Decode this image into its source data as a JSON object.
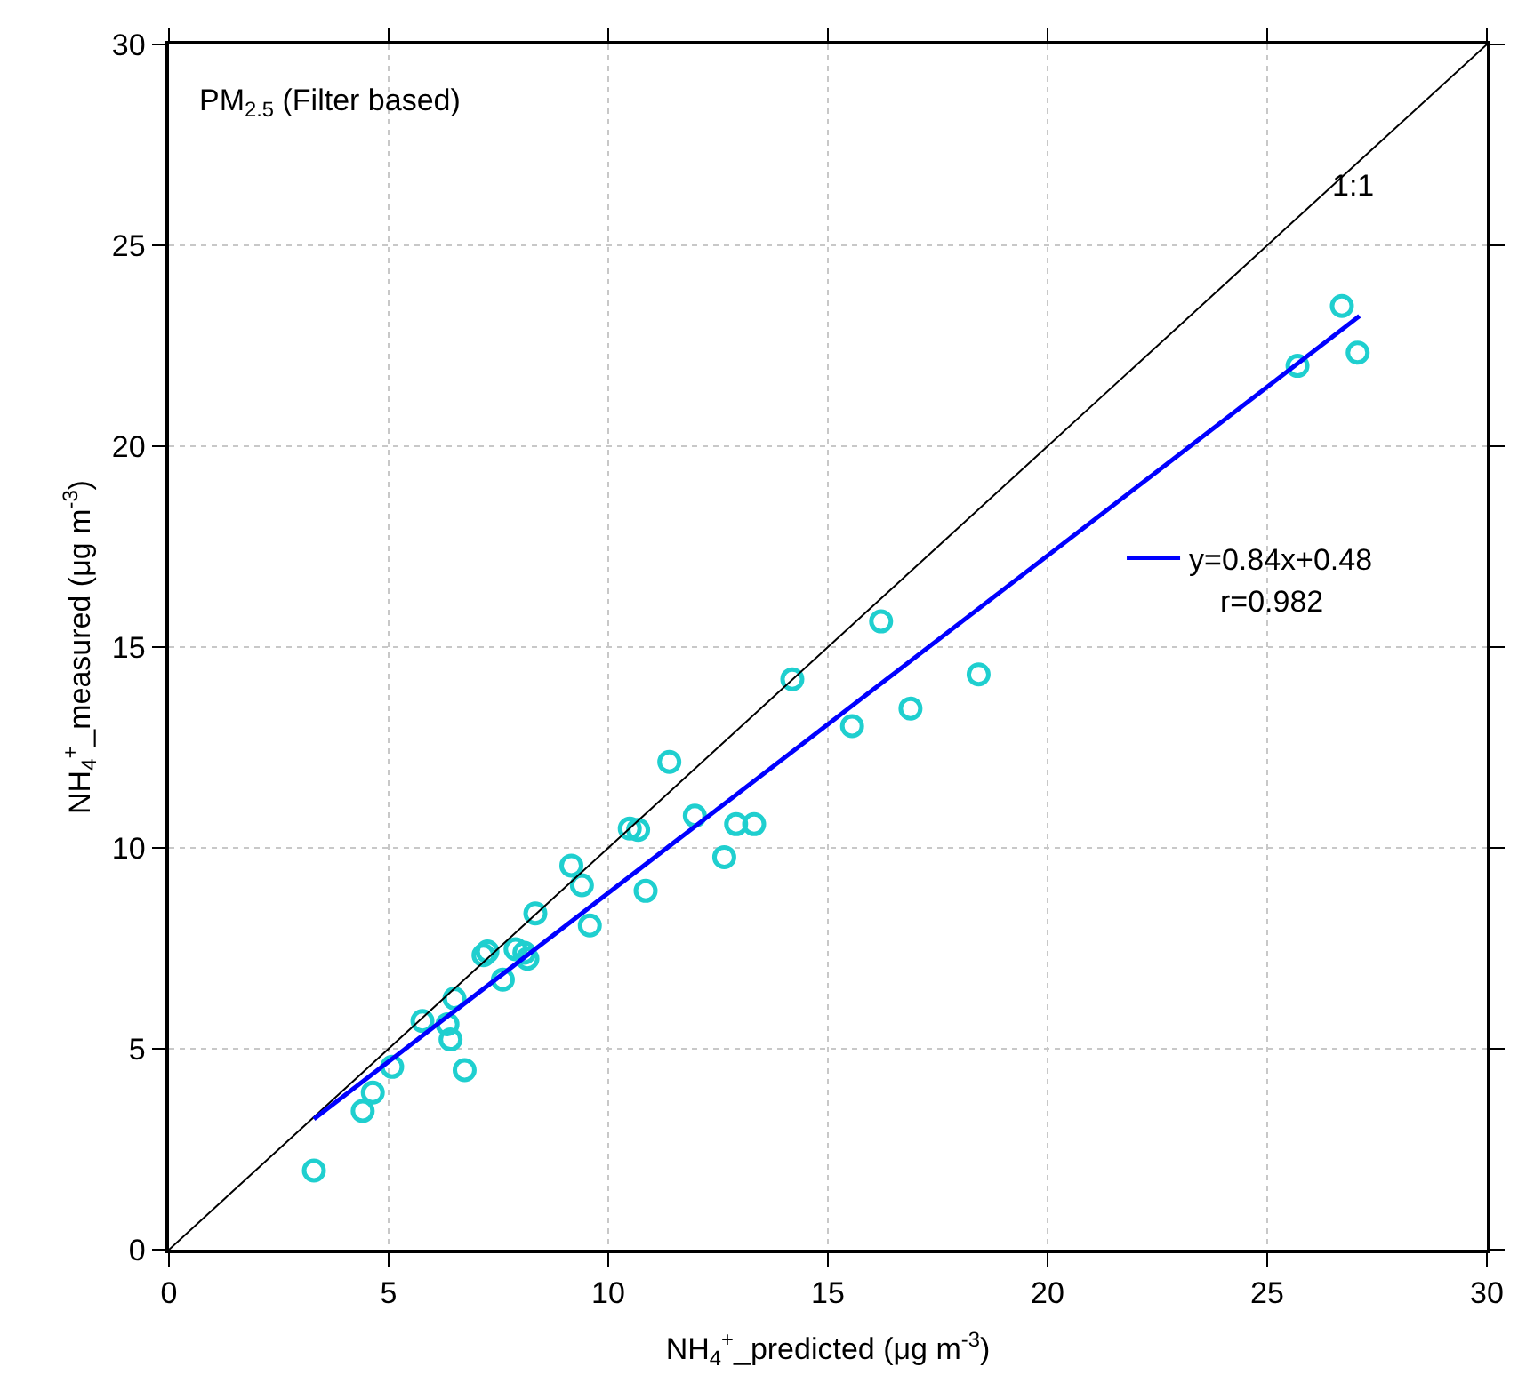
{
  "chart_data": {
    "type": "scatter",
    "xlabel": "NH$_{4}$$^{+}$_predicted (μg m$^{-3}$)",
    "ylabel": "NH$_{4}$$^{+}$_measured (μg m$^{-3}$)",
    "xlim": [
      0,
      30
    ],
    "ylim": [
      0,
      30
    ],
    "xticks": [
      0,
      5,
      10,
      15,
      20,
      25,
      30
    ],
    "yticks": [
      0,
      5,
      10,
      15,
      20,
      25,
      30
    ],
    "grid": true,
    "legend": "right",
    "marker": "circle",
    "annotations": [
      "PM$_{2.5}$ (Filter based)",
      "1:1",
      "r=0.982"
    ],
    "series": [
      {
        "color": "#1fcfcf",
        "x": [
          3.3,
          4.41,
          4.64,
          5.08,
          5.77,
          6.34,
          6.41,
          6.5,
          6.73,
          7.16,
          7.25,
          7.6,
          7.89,
          8.09,
          8.16,
          8.34,
          9.16,
          9.4,
          9.58,
          10.49,
          10.68,
          10.85,
          11.39,
          11.97,
          12.64,
          12.91,
          13.32,
          14.19,
          15.55,
          16.21,
          16.88,
          18.43,
          25.69,
          26.7,
          27.06
        ],
        "values": [
          1.97,
          3.45,
          3.91,
          4.55,
          5.69,
          5.61,
          5.23,
          6.25,
          4.47,
          7.33,
          7.42,
          6.72,
          7.48,
          7.39,
          7.24,
          8.37,
          9.56,
          9.07,
          8.07,
          10.48,
          10.45,
          8.93,
          12.14,
          10.8,
          9.77,
          10.59,
          10.59,
          14.2,
          13.03,
          15.64,
          13.47,
          14.32,
          22.0,
          23.49,
          22.33
        ]
      },
      {
        "type": "line",
        "color": "#000000",
        "x": [
          0,
          30
        ],
        "values": [
          0,
          30
        ],
        "line_style": "solid",
        "marker": "none"
      },
      {
        "type": "line",
        "name": "y=0.84x+0.48",
        "color": "#0000ff",
        "x": [
          3.3,
          27.1
        ],
        "values": [
          3.25,
          23.24
        ],
        "line_style": "solid",
        "marker": "none"
      }
    ]
  }
}
